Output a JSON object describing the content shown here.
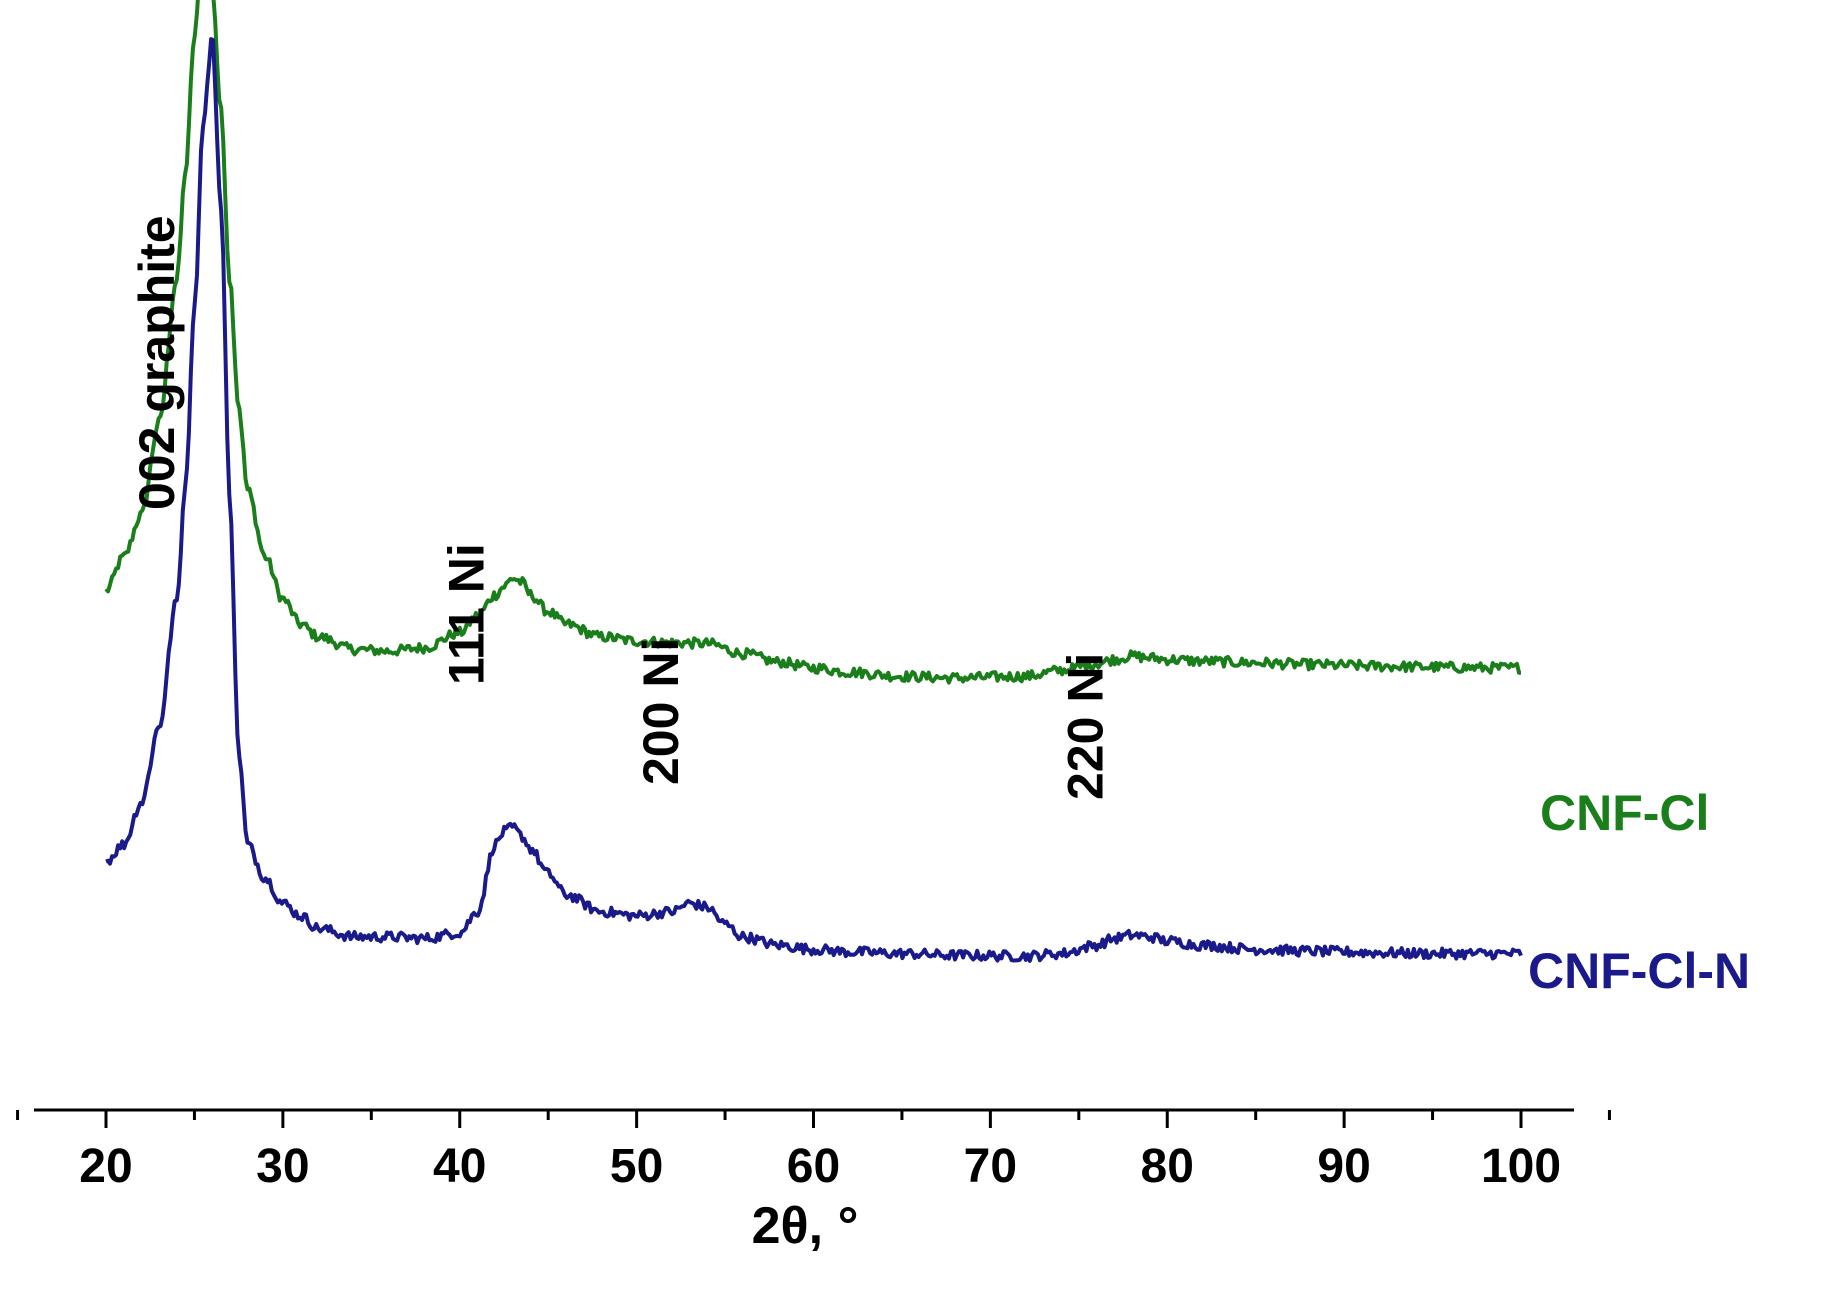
{
  "chart_data": {
    "type": "line",
    "xlabel": "2θ, °",
    "ylabel": "",
    "xlim": [
      20,
      100
    ],
    "x_ticks": [
      20,
      30,
      40,
      50,
      60,
      70,
      80,
      90,
      100
    ],
    "x_tick_labels": [
      "20",
      "30",
      "40",
      "50",
      "60",
      "70",
      "80",
      "90",
      "100"
    ],
    "y_axis_shown": false,
    "grid": false,
    "legend": "none",
    "colors": {
      "CNF-Cl": "#1a7f1a",
      "CNF-Cl-N": "#1a1a8a",
      "axis": "#000000"
    },
    "series": [
      {
        "name": "CNF-Cl",
        "x": [
          20,
          21,
          22,
          23,
          24,
          24.5,
          25,
          25.5,
          26,
          26.5,
          27,
          27.5,
          28,
          29,
          30,
          31,
          32,
          34,
          36,
          38,
          40,
          41,
          42,
          42.5,
          43,
          43.5,
          44,
          45,
          46,
          48,
          50,
          52,
          54,
          56,
          58,
          60,
          62,
          65,
          68,
          72,
          74,
          76,
          77,
          78,
          79,
          80,
          82,
          85,
          88,
          90,
          92,
          95,
          98,
          100
        ],
        "y": [
          0.16,
          0.2,
          0.25,
          0.36,
          0.53,
          0.66,
          0.82,
          0.94,
          0.88,
          0.73,
          0.53,
          0.38,
          0.28,
          0.2,
          0.15,
          0.12,
          0.105,
          0.09,
          0.088,
          0.092,
          0.11,
          0.13,
          0.155,
          0.165,
          0.175,
          0.17,
          0.155,
          0.135,
          0.12,
          0.105,
          0.1,
          0.098,
          0.097,
          0.085,
          0.075,
          0.068,
          0.063,
          0.058,
          0.056,
          0.058,
          0.065,
          0.073,
          0.078,
          0.082,
          0.08,
          0.078,
          0.076,
          0.074,
          0.072,
          0.071,
          0.07,
          0.069,
          0.068,
          0.068
        ]
      },
      {
        "name": "CNF-Cl-N",
        "x": [
          20,
          21,
          22,
          23,
          24,
          24.5,
          25,
          25.5,
          26,
          26.5,
          27,
          27.5,
          28,
          29,
          30,
          31,
          32,
          34,
          36,
          38,
          40,
          41,
          42,
          42.5,
          43,
          43.5,
          44,
          45,
          46,
          48,
          50,
          52,
          53,
          54,
          55,
          56,
          58,
          60,
          62,
          65,
          68,
          72,
          74,
          76,
          77,
          78,
          79,
          80,
          82,
          85,
          88,
          90,
          92,
          95,
          98,
          100
        ],
        "y": [
          0.02,
          0.04,
          0.09,
          0.18,
          0.33,
          0.47,
          0.68,
          0.9,
          1.0,
          0.8,
          0.45,
          0.15,
          0.04,
          0.0,
          -0.03,
          -0.045,
          -0.06,
          -0.07,
          -0.07,
          -0.072,
          -0.065,
          -0.04,
          0.04,
          0.055,
          0.06,
          0.05,
          0.035,
          0.005,
          -0.02,
          -0.04,
          -0.045,
          -0.04,
          -0.03,
          -0.035,
          -0.055,
          -0.07,
          -0.08,
          -0.085,
          -0.088,
          -0.09,
          -0.092,
          -0.093,
          -0.09,
          -0.08,
          -0.072,
          -0.068,
          -0.07,
          -0.075,
          -0.08,
          -0.085,
          -0.087,
          -0.088,
          -0.089,
          -0.09,
          -0.09,
          -0.09
        ]
      }
    ],
    "series_labels": [
      "CNF-Cl",
      "CNF-Cl-N"
    ],
    "annotations": [
      {
        "text": "002 graphite",
        "x": 26
      },
      {
        "text": "111 Ni",
        "x": 43.5
      },
      {
        "text": "200 Ni",
        "x": 54.5
      },
      {
        "text": "220 Ni",
        "x": 78.5
      }
    ]
  }
}
